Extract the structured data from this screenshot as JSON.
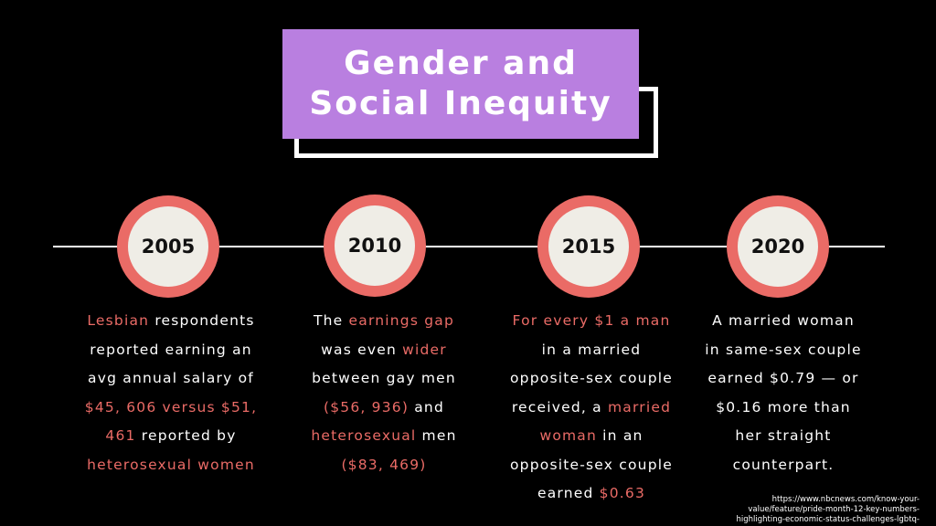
{
  "title": {
    "line1": "Gender and",
    "line2": "Social Inequity"
  },
  "colors": {
    "background": "#000000",
    "title_bg": "#b97fe0",
    "accent": "#ea6b66",
    "node_fill": "#efede6"
  },
  "timeline": [
    {
      "year": "2005",
      "lines": [
        [
          {
            "t": "Lesbian",
            "hl": true
          },
          {
            "t": " respondents",
            "hl": false
          }
        ],
        [
          {
            "t": "reported earning an",
            "hl": false
          }
        ],
        [
          {
            "t": "avg annual salary of",
            "hl": false
          }
        ],
        [
          {
            "t": "$45, 606 versus $51,",
            "hl": true
          }
        ],
        [
          {
            "t": "461",
            "hl": true
          },
          {
            "t": " reported by",
            "hl": false
          }
        ],
        [
          {
            "t": "heterosexual women",
            "hl": true
          }
        ]
      ]
    },
    {
      "year": "2010",
      "lines": [
        [
          {
            "t": "The ",
            "hl": false
          },
          {
            "t": "earnings gap",
            "hl": true
          }
        ],
        [
          {
            "t": "was even ",
            "hl": false
          },
          {
            "t": "wider",
            "hl": true
          }
        ],
        [
          {
            "t": "between gay men",
            "hl": false
          }
        ],
        [
          {
            "t": "($56, 936)",
            "hl": true
          },
          {
            "t": " and",
            "hl": false
          }
        ],
        [
          {
            "t": "heterosexual",
            "hl": true
          },
          {
            "t": " men",
            "hl": false
          }
        ],
        [
          {
            "t": "($83, 469)",
            "hl": true
          }
        ]
      ]
    },
    {
      "year": "2015",
      "lines": [
        [
          {
            "t": "For every $1 a man",
            "hl": true
          }
        ],
        [
          {
            "t": "in a married",
            "hl": false
          }
        ],
        [
          {
            "t": "opposite-sex couple",
            "hl": false
          }
        ],
        [
          {
            "t": "received, a ",
            "hl": false
          },
          {
            "t": "married",
            "hl": true
          }
        ],
        [
          {
            "t": "woman",
            "hl": true
          },
          {
            "t": " in an",
            "hl": false
          }
        ],
        [
          {
            "t": "opposite-sex couple",
            "hl": false
          }
        ],
        [
          {
            "t": "earned ",
            "hl": false
          },
          {
            "t": "$0.63",
            "hl": true
          }
        ]
      ]
    },
    {
      "year": "2020",
      "lines": [
        [
          {
            "t": "A married woman",
            "hl": false
          }
        ],
        [
          {
            "t": "in same-sex couple",
            "hl": false
          }
        ],
        [
          {
            "t": "earned $0.79 — or",
            "hl": false
          }
        ],
        [
          {
            "t": "$0.16 more than",
            "hl": false
          }
        ],
        [
          {
            "t": "her straight",
            "hl": false
          }
        ],
        [
          {
            "t": "counterpart.",
            "hl": false
          }
        ]
      ]
    }
  ],
  "source": {
    "line1": "https://www.nbcnews.com/know-your-",
    "line2": "value/feature/pride-month-12-key-numbers-",
    "line3": "highlighting-economic-status-challenges-lgbtq-"
  }
}
